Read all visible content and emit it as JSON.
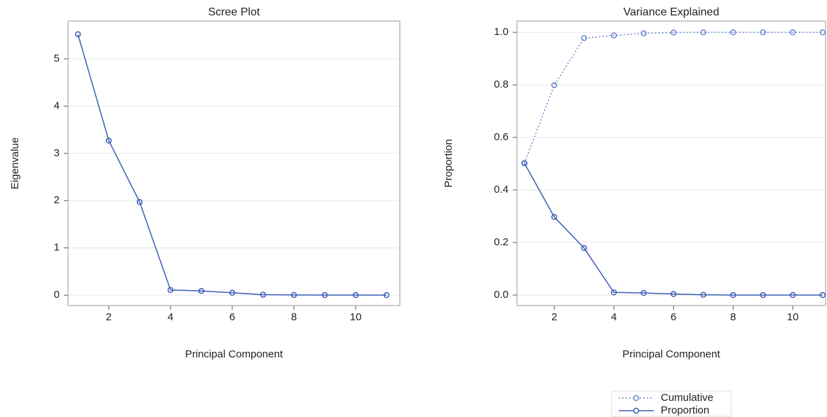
{
  "chart_data": [
    {
      "type": "line",
      "title": "Scree Plot",
      "x_label": "Principal Component",
      "y_label": "Eigenvalue",
      "x": [
        1,
        2,
        3,
        4,
        5,
        6,
        7,
        8,
        9,
        10,
        11
      ],
      "values": [
        5.52,
        3.27,
        1.97,
        0.11,
        0.09,
        0.05,
        0.01,
        0.005,
        0.003,
        0.002,
        0.001
      ],
      "color": "#3a5db5",
      "line_style": "solid",
      "xlim": [
        0.68,
        11.43
      ],
      "ylim": [
        -0.22,
        5.8
      ],
      "xticks": [
        2,
        4,
        6,
        8,
        10
      ],
      "yticks": [
        0,
        1,
        2,
        3,
        4,
        5
      ],
      "grid": true
    },
    {
      "type": "line",
      "title": "Variance Explained",
      "x_label": "Principal Component",
      "y_label": "Proportion",
      "x": [
        1,
        2,
        3,
        4,
        5,
        6,
        7,
        8,
        9,
        10,
        11
      ],
      "series": [
        {
          "name": "Cumulative",
          "color": "#6a87cf",
          "line_style": "dotted",
          "values": [
            0.502,
            0.799,
            0.978,
            0.988,
            0.996,
            0.999,
            1.0,
            1.0,
            1.0,
            1.0,
            1.0
          ]
        },
        {
          "name": "Proportion",
          "color": "#3a5db5",
          "line_style": "solid",
          "values": [
            0.502,
            0.297,
            0.179,
            0.01,
            0.008,
            0.004,
            0.001,
            0.0,
            0.0,
            0.0,
            0.0
          ]
        }
      ],
      "xlim": [
        0.75,
        11.1
      ],
      "ylim": [
        -0.04,
        1.043
      ],
      "xticks": [
        2,
        4,
        6,
        8,
        10
      ],
      "yticks": [
        {
          "value": 0,
          "label": "0.0"
        },
        {
          "value": 0.2,
          "label": "0.2"
        },
        {
          "value": 0.4,
          "label": "0.4"
        },
        {
          "value": 0.6,
          "label": "0.6"
        },
        {
          "value": 0.8,
          "label": "0.8"
        },
        {
          "value": 1,
          "label": "1.0"
        }
      ],
      "grid": true,
      "legend": "bottom"
    }
  ]
}
